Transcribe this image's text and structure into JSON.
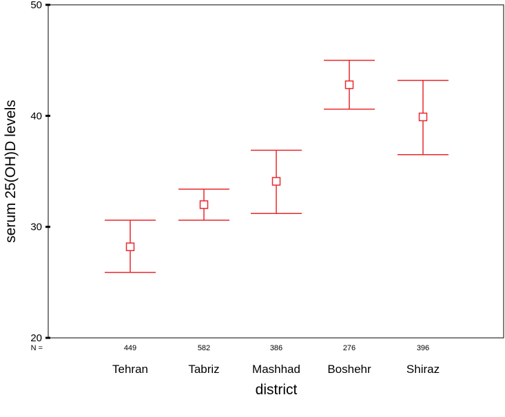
{
  "chart_data": {
    "type": "errorbar",
    "title": "",
    "xlabel": "district",
    "ylabel": "serum 25(OH)D levels",
    "ylim": [
      20,
      50
    ],
    "yticks": [
      20,
      30,
      40,
      50
    ],
    "n_prefix": "N =",
    "grid": false,
    "legend": "none",
    "categories": [
      "Tehran",
      "Tabriz",
      "Mashhad",
      "Boshehr",
      "Shiraz"
    ],
    "n": [
      "449",
      "582",
      "386",
      "276",
      "396"
    ],
    "series": [
      {
        "means": [
          28.2,
          32.0,
          34.1,
          42.8,
          39.9
        ],
        "lower": [
          25.9,
          30.6,
          31.2,
          40.6,
          36.5
        ],
        "upper": [
          30.6,
          33.4,
          36.9,
          45.0,
          43.2
        ]
      }
    ],
    "color": "#e8262b"
  }
}
